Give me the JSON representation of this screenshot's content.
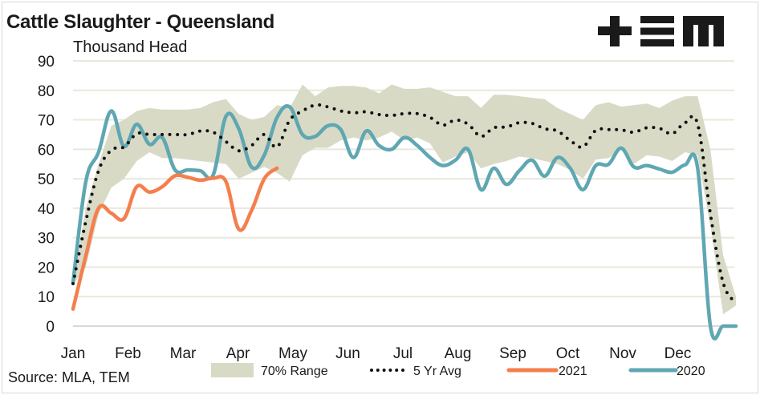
{
  "header": {
    "title": "Cattle Slaughter - Queensland",
    "subtitle": "Thousand Head",
    "source": "Source: MLA, TEM",
    "logo": "+EM logo"
  },
  "colors": {
    "range": "#d9dac6",
    "avg": "#111111",
    "y2021": "#f47f4d",
    "y2020": "#5fa7b2",
    "grid": "#e8e8dc"
  },
  "chart_data": {
    "type": "line",
    "title": "Cattle Slaughter - Queensland",
    "subtitle": "Thousand Head",
    "xlabel": "",
    "ylabel": "Thousand Head",
    "ylim": [
      0,
      90
    ],
    "yticks": [
      0,
      10,
      20,
      30,
      40,
      50,
      60,
      70,
      80,
      90
    ],
    "xtick_labels": [
      "Jan",
      "Feb",
      "Mar",
      "Apr",
      "May",
      "Jun",
      "Jul",
      "Aug",
      "Sep",
      "Oct",
      "Nov",
      "Dec"
    ],
    "x_unit": "week of year (0-52)",
    "grid": true,
    "legend_position": "bottom",
    "legend": [
      "70% Range",
      "5 Yr Avg",
      "2021",
      "2020"
    ],
    "range_70": {
      "name": "70% Range",
      "high": [
        15,
        40,
        55,
        68,
        70,
        73,
        74,
        73.5,
        73.5,
        73.5,
        74,
        76,
        77,
        72,
        70,
        71,
        75,
        74,
        82,
        78,
        81,
        81.5,
        81.5,
        81,
        79,
        82,
        80.5,
        80.5,
        81,
        79.5,
        78,
        78,
        74,
        78.5,
        78.5,
        78,
        77.5,
        77,
        74,
        72,
        70,
        75,
        76,
        74.5,
        75,
        75.5,
        74,
        76.5,
        78,
        78,
        60,
        24,
        10
      ],
      "low": [
        14,
        20,
        38,
        47,
        50,
        56,
        59,
        57,
        57,
        56.5,
        56,
        55.5,
        55,
        50,
        52,
        54,
        52,
        49,
        58,
        60.5,
        60.5,
        63,
        64,
        63,
        64,
        66,
        63,
        64,
        62,
        55.5,
        57.5,
        59,
        53.5,
        55,
        56,
        57.5,
        57,
        56,
        55,
        53,
        50,
        56.5,
        57,
        60,
        55,
        58,
        57.5,
        56,
        59,
        58,
        34,
        4,
        7
      ]
    },
    "series": [
      {
        "name": "5 Yr Avg",
        "style": "dotted",
        "values": [
          14.4,
          35.5,
          52.7,
          59.7,
          60.8,
          65.3,
          65,
          65,
          65,
          65,
          66.2,
          65.8,
          62.6,
          59.5,
          61.3,
          65,
          60.8,
          69.9,
          73,
          75,
          74.4,
          73,
          72.4,
          72.7,
          71.8,
          71.5,
          72.1,
          72.1,
          70.8,
          68.2,
          69.9,
          68.5,
          64.4,
          67.3,
          67.6,
          69,
          68.8,
          67,
          66.2,
          63,
          60.8,
          66.4,
          66.7,
          66.6,
          65.8,
          67.3,
          67.1,
          65.3,
          69,
          68.5,
          38,
          14.7,
          7.9
        ]
      },
      {
        "name": "2021",
        "style": "solid",
        "values": [
          5.8,
          23.8,
          40,
          38.3,
          36.5,
          47.3,
          45.5,
          47.3,
          51,
          50.5,
          49.5,
          50.2,
          49,
          32.9,
          39.2,
          50,
          53.6
        ]
      },
      {
        "name": "2020",
        "style": "solid",
        "values": [
          14.8,
          49,
          59,
          73,
          61,
          68.5,
          61.7,
          64,
          53,
          53,
          52.7,
          51.3,
          71.2,
          67,
          54,
          58,
          70.8,
          74.4,
          65,
          64.4,
          68,
          66.7,
          57.2,
          66.2,
          61.3,
          60,
          64,
          61.3,
          57.2,
          54.5,
          56.3,
          59.9,
          46.3,
          53.6,
          48.1,
          52.7,
          56.3,
          50.9,
          57.2,
          53.6,
          46.3,
          54.5,
          54.9,
          60.4,
          54,
          54.5,
          53.3,
          52.2,
          54.7,
          53.6,
          0,
          0,
          0
        ]
      }
    ]
  }
}
